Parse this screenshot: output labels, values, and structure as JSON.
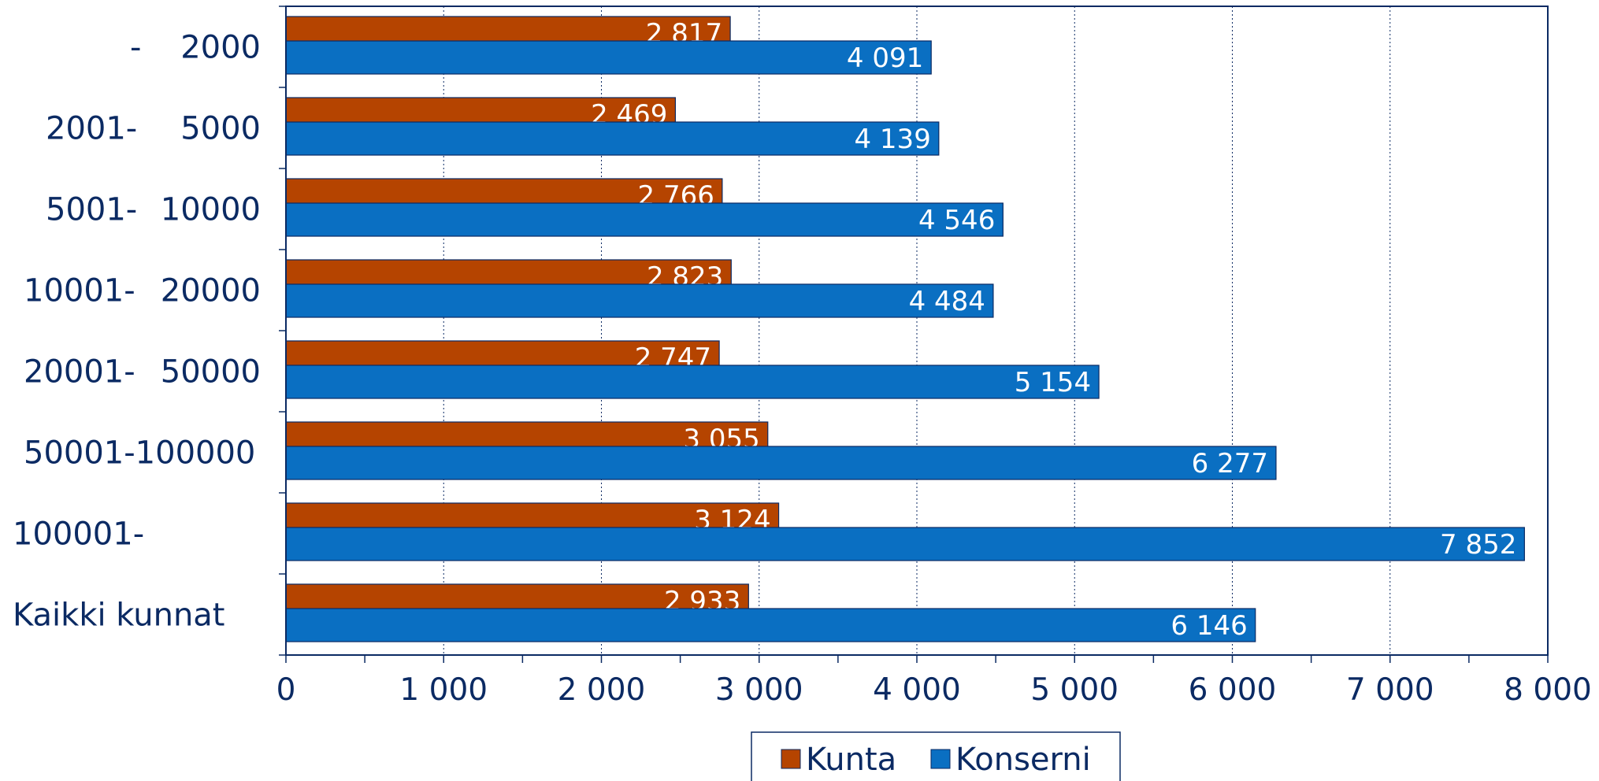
{
  "chart_data": {
    "type": "bar",
    "orientation": "horizontal",
    "title": "",
    "xlabel": "",
    "ylabel": "",
    "categories": [
      {
        "left": "-",
        "right": "2000"
      },
      {
        "left": "2001-",
        "right": "5000"
      },
      {
        "left": "5001-",
        "right": "10000"
      },
      {
        "left": "10001-",
        "right": "20000"
      },
      {
        "left": "20001-",
        "right": "50000"
      },
      {
        "left": "50001-100000",
        "right": ""
      },
      {
        "left": "100001-",
        "right": ""
      },
      {
        "left": "Kaikki kunnat",
        "right": ""
      }
    ],
    "series": [
      {
        "name": "Kunta",
        "color": "#b54400",
        "values": [
          2817,
          2469,
          2766,
          2823,
          2747,
          3055,
          3124,
          2933
        ],
        "labels": [
          "2 817",
          "2 469",
          "2 766",
          "2 823",
          "2 747",
          "3 055",
          "3 124",
          "2 933"
        ]
      },
      {
        "name": "Konserni",
        "color": "#0a6fc2",
        "values": [
          4091,
          4139,
          4546,
          4484,
          5154,
          6277,
          7852,
          6146
        ],
        "labels": [
          "4 091",
          "4 139",
          "4 546",
          "4 484",
          "5 154",
          "6 277",
          "7 852",
          "6 146"
        ]
      }
    ],
    "xlim": [
      0,
      8000
    ],
    "xticks": [
      0,
      1000,
      2000,
      3000,
      4000,
      5000,
      6000,
      7000,
      8000
    ],
    "xtick_labels": [
      "0",
      "1 000",
      "2 000",
      "3 000",
      "4 000",
      "5 000",
      "6 000",
      "7 000",
      "8 000"
    ],
    "grid": "vertical dotted",
    "legend_position": "bottom-center",
    "colors": {
      "axis": "#0b2a63",
      "grid": "#0b2a63",
      "label": "#0b2a63",
      "value_label": "#ffffff"
    }
  }
}
